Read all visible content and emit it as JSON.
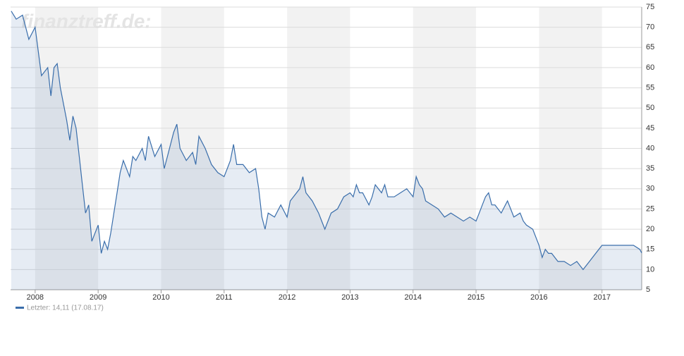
{
  "chart_data": {
    "type": "line",
    "watermark": "finanztreff.de:",
    "x": [
      2007.62,
      2007.7,
      2007.8,
      2007.9,
      2008.0,
      2008.05,
      2008.1,
      2008.2,
      2008.25,
      2008.3,
      2008.35,
      2008.4,
      2008.5,
      2008.55,
      2008.6,
      2008.65,
      2008.7,
      2008.75,
      2008.8,
      2008.85,
      2008.9,
      2009.0,
      2009.05,
      2009.1,
      2009.15,
      2009.2,
      2009.3,
      2009.35,
      2009.4,
      2009.5,
      2009.55,
      2009.6,
      2009.7,
      2009.75,
      2009.8,
      2009.9,
      2010.0,
      2010.05,
      2010.1,
      2010.2,
      2010.25,
      2010.3,
      2010.4,
      2010.5,
      2010.55,
      2010.6,
      2010.7,
      2010.8,
      2010.9,
      2011.0,
      2011.05,
      2011.1,
      2011.15,
      2011.2,
      2011.3,
      2011.4,
      2011.5,
      2011.55,
      2011.6,
      2011.65,
      2011.7,
      2011.8,
      2011.9,
      2012.0,
      2012.05,
      2012.1,
      2012.2,
      2012.25,
      2012.3,
      2012.4,
      2012.5,
      2012.55,
      2012.6,
      2012.7,
      2012.8,
      2012.9,
      2013.0,
      2013.05,
      2013.1,
      2013.15,
      2013.2,
      2013.3,
      2013.35,
      2013.4,
      2013.5,
      2013.55,
      2013.6,
      2013.7,
      2013.8,
      2013.9,
      2014.0,
      2014.05,
      2014.1,
      2014.15,
      2014.2,
      2014.3,
      2014.4,
      2014.5,
      2014.6,
      2014.7,
      2014.8,
      2014.9,
      2015.0,
      2015.05,
      2015.1,
      2015.15,
      2015.2,
      2015.25,
      2015.3,
      2015.4,
      2015.5,
      2015.55,
      2015.6,
      2015.7,
      2015.75,
      2015.8,
      2015.9,
      2016.0,
      2016.05,
      2016.1,
      2016.15,
      2016.2,
      2016.3,
      2016.4,
      2016.5,
      2016.6,
      2016.7,
      2016.75,
      2016.8,
      2016.9,
      2017.0,
      2017.1,
      2017.2,
      2017.3,
      2017.4,
      2017.5,
      2017.6,
      2017.63
    ],
    "series": [
      {
        "name": "Letzter: 14,11 (17.08.17)",
        "color": "#3a6eab",
        "values": [
          74,
          72,
          73,
          67,
          70,
          64,
          58,
          60,
          53,
          60,
          61,
          55,
          47,
          42,
          48,
          45,
          38,
          31,
          24,
          26,
          17,
          21,
          14,
          17,
          15,
          19,
          29,
          34,
          37,
          33,
          38,
          37,
          40,
          37,
          43,
          38,
          41,
          35,
          38,
          44,
          46,
          40,
          37,
          39,
          36,
          43,
          40,
          36,
          34,
          33,
          35,
          37,
          41,
          36,
          36,
          34,
          35,
          30,
          23,
          20,
          24,
          23,
          26,
          23,
          27,
          28,
          30,
          33,
          29,
          27,
          24,
          22,
          20,
          24,
          25,
          28,
          29,
          28,
          31,
          29,
          29,
          26,
          28,
          31,
          29,
          31,
          28,
          28,
          29,
          30,
          28,
          33,
          31,
          30,
          27,
          26,
          25,
          23,
          24,
          23,
          22,
          23,
          22,
          24,
          26,
          28,
          29,
          26,
          26,
          24,
          27,
          25,
          23,
          24,
          22,
          21,
          20,
          16,
          13,
          15,
          14,
          14,
          12,
          12,
          11,
          12,
          10,
          11,
          12,
          14,
          16,
          16,
          16,
          16,
          16,
          16,
          15,
          14.11
        ]
      }
    ],
    "xlim": [
      2007.61,
      2017.63
    ],
    "xticks": [
      2008,
      2009,
      2010,
      2011,
      2012,
      2013,
      2014,
      2015,
      2016,
      2017
    ],
    "ylim": [
      5,
      75
    ],
    "yticks": [
      5,
      10,
      15,
      20,
      25,
      30,
      35,
      40,
      45,
      50,
      55,
      60,
      65,
      70,
      75
    ],
    "grid": true
  }
}
